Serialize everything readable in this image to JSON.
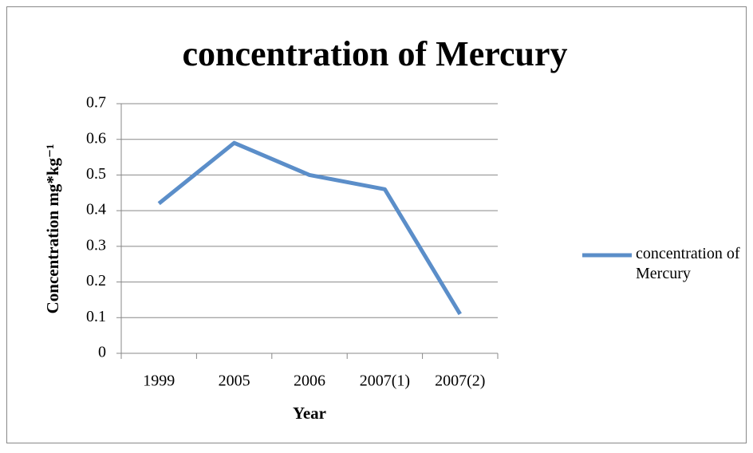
{
  "chart_data": {
    "type": "line",
    "title": "concentration of Mercury",
    "xlabel": "Year",
    "ylabel": "Concentration mg*kg⁻¹",
    "categories": [
      "1999",
      "2005",
      "2006",
      "2007(1)",
      "2007(2)"
    ],
    "series": [
      {
        "name": "concentration of Mercury",
        "color": "#5b8ec9",
        "values": [
          0.42,
          0.59,
          0.5,
          0.46,
          0.11
        ]
      }
    ],
    "ylim": [
      0,
      0.7
    ],
    "yticks": [
      0,
      0.1,
      0.2,
      0.3,
      0.4,
      0.5,
      0.6,
      0.7
    ],
    "grid": true,
    "legend": "right"
  }
}
